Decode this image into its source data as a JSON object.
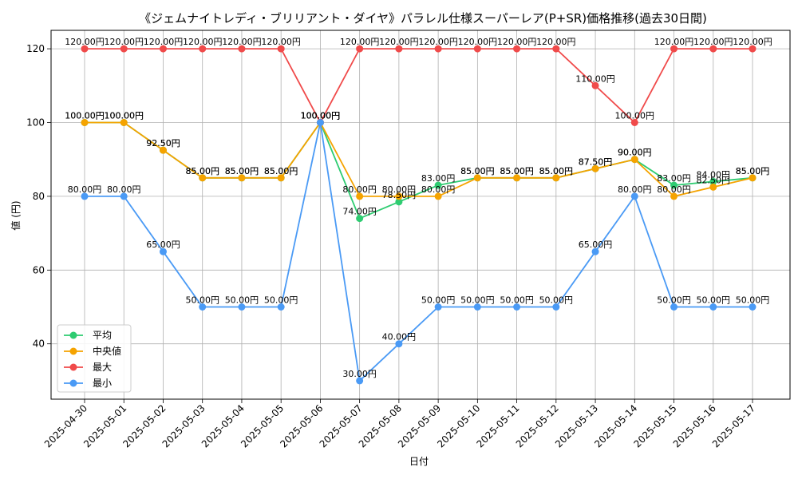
{
  "chart_data": {
    "type": "line",
    "title": "《ジェムナイトレディ・ブリリアント・ダイヤ》パラレル仕様スーパーレア(P+SR)価格推移(過去30日間)",
    "xlabel": "日付",
    "ylabel": "値 (円)",
    "ylim": [
      25,
      125
    ],
    "yticks": [
      40,
      60,
      80,
      100,
      120
    ],
    "grid": true,
    "legend_position": "lower-left",
    "categories": [
      "2025-04-30",
      "2025-05-01",
      "2025-05-02",
      "2025-05-03",
      "2025-05-04",
      "2025-05-05",
      "2025-05-06",
      "2025-05-07",
      "2025-05-08",
      "2025-05-09",
      "2025-05-10",
      "2025-05-11",
      "2025-05-12",
      "2025-05-13",
      "2025-05-14",
      "2025-05-15",
      "2025-05-16",
      "2025-05-17"
    ],
    "series": [
      {
        "name": "平均",
        "color": "#2ecc71",
        "values": [
          100,
          100,
          92.5,
          85,
          85,
          85,
          100,
          74,
          78.5,
          83,
          85,
          85,
          85,
          87.5,
          90,
          83,
          84,
          85
        ]
      },
      {
        "name": "中央値",
        "color": "#f5a300",
        "values": [
          100,
          100,
          92.5,
          85,
          85,
          85,
          100,
          80,
          80,
          80,
          85,
          85,
          85,
          87.5,
          90,
          80,
          82.5,
          85
        ]
      },
      {
        "name": "最大",
        "color": "#f04a4a",
        "values": [
          120,
          120,
          120,
          120,
          120,
          120,
          100,
          120,
          120,
          120,
          120,
          120,
          120,
          110,
          100,
          120,
          120,
          120
        ]
      },
      {
        "name": "最小",
        "color": "#4a9af5",
        "values": [
          80,
          80,
          65,
          50,
          50,
          50,
          100,
          30,
          40,
          50,
          50,
          50,
          50,
          65,
          80,
          50,
          50,
          50
        ]
      }
    ],
    "value_suffix": "円"
  }
}
